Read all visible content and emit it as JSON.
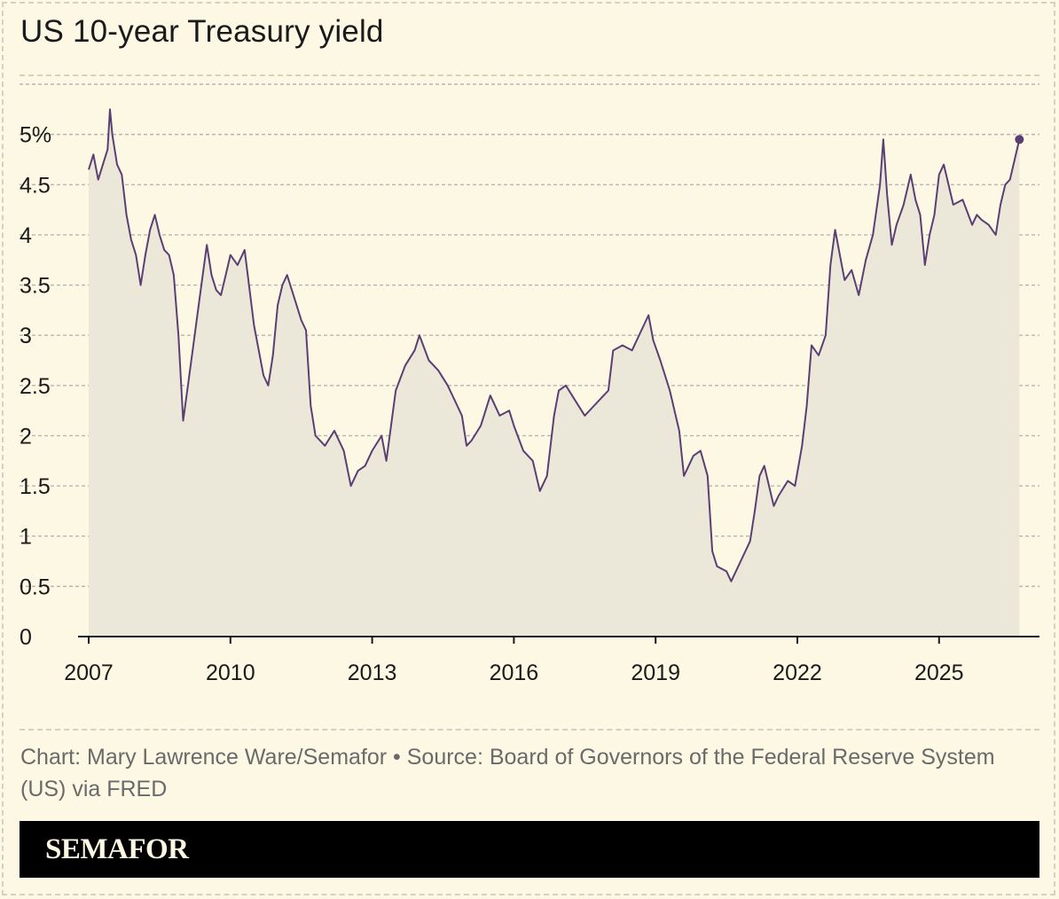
{
  "title": "US 10-year Treasury yield",
  "source": "Chart: Mary Lawrence Ware/Semafor • Source: Board of Governors of the Federal Reserve System (US) via FRED",
  "brand": "SEMAFOR",
  "colors": {
    "background": "#fcf8e4",
    "line": "#5c3f72",
    "area": "#ebe7d9",
    "grid": "#b5b5b5",
    "text": "#1a1a1a",
    "source_text": "#6a6a6a",
    "footer_bg": "#000000",
    "footer_text": "#fcf8e4"
  },
  "chart_data": {
    "type": "area",
    "title": "US 10-year Treasury yield",
    "xlabel": "",
    "ylabel": "",
    "xlim": [
      2007.0,
      2026.75
    ],
    "ylim": [
      0,
      5.5
    ],
    "grid": true,
    "ytick_values": [
      0,
      0.5,
      1,
      1.5,
      2,
      2.5,
      3,
      3.5,
      4,
      4.5,
      5
    ],
    "ytick_labels": [
      "0",
      "0.5",
      "1",
      "1.5",
      "2",
      "2.5",
      "3",
      "3.5",
      "4",
      "4.5",
      "5%"
    ],
    "xtick_values": [
      2007,
      2010,
      2013,
      2016,
      2019,
      2022,
      2025
    ],
    "xtick_labels": [
      "2007",
      "2010",
      "2013",
      "2016",
      "2019",
      "2022",
      "2025"
    ],
    "series": [
      {
        "x": [
          2007.0,
          2007.1,
          2007.2,
          2007.3,
          2007.4,
          2007.45,
          2007.5,
          2007.6,
          2007.7,
          2007.8,
          2007.9,
          2008.0,
          2008.1,
          2008.2,
          2008.3,
          2008.4,
          2008.5,
          2008.6,
          2008.7,
          2008.8,
          2008.9,
          2009.0,
          2009.1,
          2009.2,
          2009.3,
          2009.4,
          2009.5,
          2009.6,
          2009.7,
          2009.8,
          2009.9,
          2010.0,
          2010.15,
          2010.3,
          2010.5,
          2010.7,
          2010.8,
          2010.9,
          2011.0,
          2011.1,
          2011.2,
          2011.4,
          2011.5,
          2011.6,
          2011.7,
          2011.8,
          2011.9,
          2012.0,
          2012.2,
          2012.4,
          2012.55,
          2012.7,
          2012.85,
          2013.0,
          2013.2,
          2013.3,
          2013.5,
          2013.7,
          2013.9,
          2014.0,
          2014.2,
          2014.4,
          2014.6,
          2014.8,
          2014.9,
          2015.0,
          2015.1,
          2015.3,
          2015.5,
          2015.7,
          2015.9,
          2016.0,
          2016.2,
          2016.4,
          2016.55,
          2016.7,
          2016.85,
          2016.95,
          2017.1,
          2017.3,
          2017.5,
          2017.7,
          2017.9,
          2018.0,
          2018.1,
          2018.3,
          2018.5,
          2018.7,
          2018.85,
          2018.95,
          2019.1,
          2019.3,
          2019.5,
          2019.6,
          2019.8,
          2019.95,
          2020.1,
          2020.2,
          2020.3,
          2020.5,
          2020.6,
          2020.8,
          2021.0,
          2021.1,
          2021.2,
          2021.3,
          2021.5,
          2021.6,
          2021.8,
          2021.95,
          2022.1,
          2022.2,
          2022.3,
          2022.45,
          2022.6,
          2022.7,
          2022.8,
          2022.9,
          2023.0,
          2023.15,
          2023.3,
          2023.45,
          2023.6,
          2023.75,
          2023.82,
          2023.9,
          2024.0,
          2024.1,
          2024.25,
          2024.4,
          2024.5,
          2024.6,
          2024.7,
          2024.8,
          2024.9,
          2025.0,
          2025.1,
          2025.3,
          2025.5,
          2025.7,
          2025.8,
          2025.9,
          2026.05,
          2026.2,
          2026.3,
          2026.4,
          2026.5,
          2026.6,
          2026.7
        ],
        "y": [
          4.65,
          4.8,
          4.55,
          4.7,
          4.85,
          5.25,
          5.0,
          4.7,
          4.6,
          4.2,
          3.95,
          3.8,
          3.5,
          3.8,
          4.05,
          4.2,
          4.0,
          3.85,
          3.8,
          3.6,
          3.0,
          2.15,
          2.5,
          2.85,
          3.2,
          3.55,
          3.9,
          3.6,
          3.45,
          3.4,
          3.6,
          3.8,
          3.7,
          3.85,
          3.1,
          2.6,
          2.5,
          2.8,
          3.3,
          3.5,
          3.6,
          3.3,
          3.15,
          3.05,
          2.3,
          2.0,
          1.95,
          1.9,
          2.05,
          1.85,
          1.5,
          1.65,
          1.7,
          1.85,
          2.0,
          1.75,
          2.45,
          2.7,
          2.85,
          3.0,
          2.75,
          2.65,
          2.5,
          2.3,
          2.2,
          1.9,
          1.95,
          2.1,
          2.4,
          2.2,
          2.25,
          2.1,
          1.85,
          1.75,
          1.45,
          1.6,
          2.2,
          2.45,
          2.5,
          2.35,
          2.2,
          2.3,
          2.4,
          2.45,
          2.85,
          2.9,
          2.85,
          3.05,
          3.2,
          2.95,
          2.75,
          2.45,
          2.05,
          1.6,
          1.8,
          1.85,
          1.6,
          0.85,
          0.7,
          0.65,
          0.55,
          0.75,
          0.95,
          1.25,
          1.6,
          1.7,
          1.3,
          1.4,
          1.55,
          1.5,
          1.9,
          2.3,
          2.9,
          2.8,
          3.0,
          3.7,
          4.05,
          3.8,
          3.55,
          3.65,
          3.4,
          3.75,
          4.0,
          4.5,
          4.95,
          4.4,
          3.9,
          4.1,
          4.3,
          4.6,
          4.35,
          4.2,
          3.7,
          4.0,
          4.2,
          4.6,
          4.7,
          4.3,
          4.35,
          4.1,
          4.2,
          4.15,
          4.1,
          4.0,
          4.3,
          4.5,
          4.55,
          4.75,
          4.95
        ]
      }
    ],
    "last_point": {
      "x": 2026.7,
      "y": 4.95
    }
  }
}
